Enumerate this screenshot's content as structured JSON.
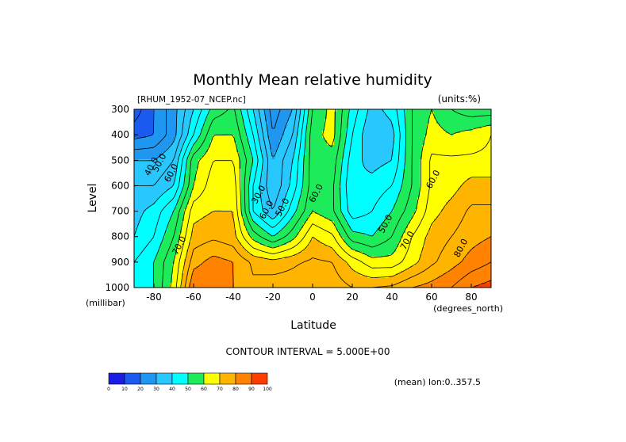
{
  "chart_data": {
    "type": "heatmap",
    "title": "Monthly Mean relative humidity",
    "source_label": "[RHUM_1952-07_NCEP.nc]",
    "units_label": "(units:%)",
    "xlabel": "Latitude",
    "ylabel": "Level",
    "x_units": "(degrees_north)",
    "y_units": "(millibar)",
    "xlim": [
      -90,
      90
    ],
    "ylim": [
      1000,
      300
    ],
    "x_ticks": [
      {
        "value": -80,
        "label": "-80"
      },
      {
        "value": -60,
        "label": "-60"
      },
      {
        "value": -40,
        "label": "-40"
      },
      {
        "value": -20,
        "label": "-20"
      },
      {
        "value": 0,
        "label": "0"
      },
      {
        "value": 20,
        "label": "20"
      },
      {
        "value": 40,
        "label": "40"
      },
      {
        "value": 60,
        "label": "60"
      },
      {
        "value": 80,
        "label": "80"
      }
    ],
    "y_ticks": [
      {
        "value": 300,
        "label": "300"
      },
      {
        "value": 400,
        "label": "400"
      },
      {
        "value": 500,
        "label": "500"
      },
      {
        "value": 600,
        "label": "600"
      },
      {
        "value": 700,
        "label": "700"
      },
      {
        "value": 800,
        "label": "800"
      },
      {
        "value": 900,
        "label": "900"
      },
      {
        "value": 1000,
        "label": "1000"
      }
    ],
    "lat": [
      -90,
      -80,
      -70,
      -60,
      -50,
      -40,
      -30,
      -20,
      -10,
      0,
      10,
      20,
      30,
      40,
      50,
      60,
      70,
      80,
      90
    ],
    "levels": [
      300,
      400,
      500,
      600,
      700,
      800,
      900,
      1000
    ],
    "values": [
      [
        12,
        20,
        28,
        40,
        52,
        56,
        40,
        22,
        30,
        55,
        62,
        48,
        38,
        42,
        55,
        60,
        55,
        52,
        52
      ],
      [
        18,
        20,
        28,
        45,
        60,
        60,
        45,
        25,
        35,
        58,
        62,
        45,
        35,
        38,
        55,
        62,
        60,
        62,
        65
      ],
      [
        30,
        30,
        35,
        58,
        65,
        65,
        50,
        30,
        40,
        58,
        58,
        42,
        38,
        40,
        55,
        66,
        66,
        66,
        66
      ],
      [
        35,
        35,
        40,
        60,
        68,
        68,
        45,
        30,
        42,
        58,
        56,
        40,
        42,
        45,
        55,
        66,
        68,
        72,
        72
      ],
      [
        38,
        42,
        50,
        68,
        70,
        70,
        45,
        35,
        48,
        60,
        56,
        42,
        45,
        50,
        58,
        68,
        72,
        76,
        76
      ],
      [
        40,
        45,
        55,
        72,
        74,
        72,
        58,
        50,
        58,
        70,
        66,
        52,
        50,
        55,
        65,
        72,
        75,
        78,
        80
      ],
      [
        45,
        50,
        60,
        78,
        82,
        80,
        74,
        72,
        74,
        76,
        75,
        68,
        62,
        62,
        68,
        74,
        78,
        82,
        85
      ],
      [
        45,
        50,
        62,
        85,
        85,
        80,
        76,
        78,
        78,
        80,
        78,
        75,
        75,
        76,
        80,
        82,
        85,
        90,
        92
      ]
    ],
    "contour_labels": [
      {
        "text": "40.0",
        "lat": -80,
        "level": 530
      },
      {
        "text": "50.0",
        "lat": -76,
        "level": 515
      },
      {
        "text": "60.0",
        "lat": -70,
        "level": 555
      },
      {
        "text": "30.0",
        "lat": -26,
        "level": 640
      },
      {
        "text": "60.0",
        "lat": -22,
        "level": 700
      },
      {
        "text": "50.0",
        "lat": -14,
        "level": 690
      },
      {
        "text": "60.0",
        "lat": 3,
        "level": 635
      },
      {
        "text": "50.0",
        "lat": 38,
        "level": 755
      },
      {
        "text": "70.0",
        "lat": 49,
        "level": 820
      },
      {
        "text": "60.0",
        "lat": 62,
        "level": 580
      },
      {
        "text": "80.0",
        "lat": 76,
        "level": 850
      },
      {
        "text": "70.0",
        "lat": -66,
        "level": 840
      }
    ],
    "contour_interval_text": "CONTOUR INTERVAL = 5.000E+00",
    "domain_text": "(mean) lon:0..357.5",
    "colorbar": {
      "boundaries": [
        "0",
        "10",
        "20",
        "30",
        "40",
        "50",
        "60",
        "70",
        "80",
        "90",
        "100"
      ],
      "colors": [
        "#8f1fb4",
        "#1c1ce6",
        "#1b5af0",
        "#1f96f0",
        "#28c8ff",
        "#00ffff",
        "#1eeb5a",
        "#ffff00",
        "#ffb400",
        "#ff8200",
        "#ff3c00",
        "#ff0000"
      ]
    },
    "grid": false,
    "legend": "bottom-left colorbar"
  }
}
